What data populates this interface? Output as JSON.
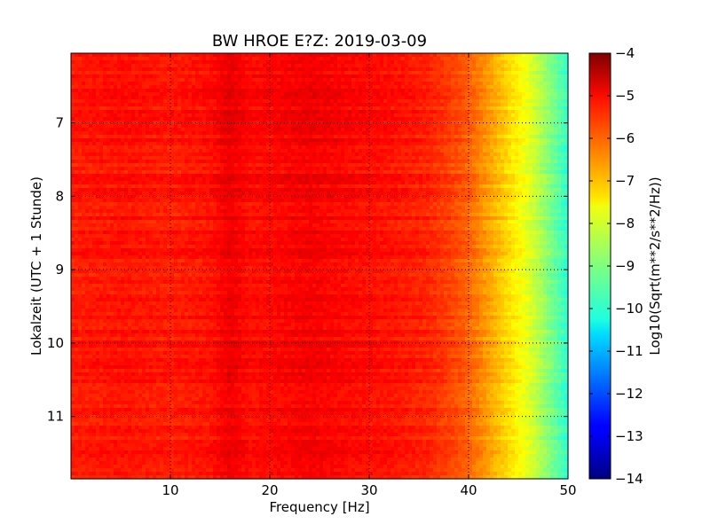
{
  "chart_data": {
    "type": "heatmap",
    "title": "BW HROE E?Z: 2019-03-09",
    "xlabel": "Frequency [Hz]",
    "ylabel": "Lokalzeit (UTC + 1 Stunde)",
    "xlim": [
      0,
      50
    ],
    "ylim": [
      6.05,
      11.85
    ],
    "x_ticks": [
      10,
      20,
      30,
      40,
      50
    ],
    "y_ticks": [
      7,
      8,
      9,
      10,
      11
    ],
    "x_tick_labels": [
      "10",
      "20",
      "30",
      "40",
      "50"
    ],
    "y_tick_labels": [
      "7",
      "8",
      "9",
      "10",
      "11"
    ],
    "grid": true,
    "colormap": "jet",
    "colorbar": {
      "label": "Log10(Sqrt(m**2/s**2/Hz))",
      "min": -14,
      "max": -4,
      "ticks": [
        -4,
        -5,
        -6,
        -7,
        -8,
        -9,
        -10,
        -11,
        -12,
        -13,
        -14
      ],
      "tick_labels": [
        "−4",
        "−5",
        "−6",
        "−7",
        "−8",
        "−9",
        "−10",
        "−11",
        "−12",
        "−13",
        "−14"
      ]
    },
    "frequency_profile": {
      "frequency_hz": [
        0,
        5,
        10,
        14,
        16,
        18,
        20,
        24,
        28,
        32,
        36,
        38,
        40,
        42,
        44,
        46,
        48,
        50
      ],
      "log_psd": [
        -5.5,
        -5.4,
        -5.5,
        -5.4,
        -5.05,
        -5.35,
        -5.3,
        -5.15,
        -5.3,
        -5.4,
        -5.6,
        -5.85,
        -6.2,
        -6.8,
        -7.4,
        -8.0,
        -8.9,
        -9.8
      ]
    }
  }
}
